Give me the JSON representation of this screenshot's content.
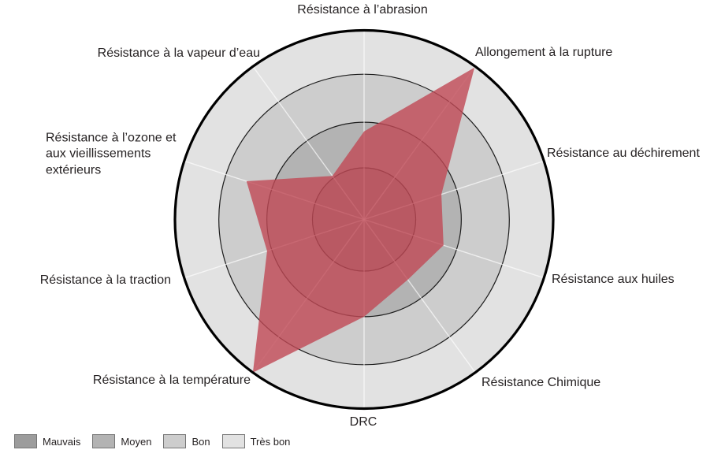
{
  "chart_data": {
    "type": "radar",
    "axes": [
      "Résistance à l’abrasion",
      "Allongement à la rupture",
      "Résistance au déchirement",
      "Résistance aux huiles",
      "Résistance Chimique",
      "DRC",
      "Résistance à la température",
      "Résistance à la traction",
      "Résistance à l’ozone et\naux vieillissements\nextérieurs",
      "Résistance à la vapeur d’eau"
    ],
    "axis_order": "clockwise-from-top",
    "scale": {
      "min": 0,
      "max": 4,
      "levels": [
        "Mauvais",
        "Moyen",
        "Bon",
        "Très bon"
      ],
      "ring_fractions": [
        0.273,
        0.514,
        0.768,
        1.0
      ],
      "ring_colors": [
        "#9c9c9c",
        "#b3b3b3",
        "#cdcdcd",
        "#e2e2e2"
      ]
    },
    "series": [
      {
        "values": [
          1.8,
          3.97,
          1.65,
          1.7,
          1.5,
          2.0,
          4.0,
          2.1,
          2.55,
          1.05
        ],
        "fill_color": "#c14955",
        "fill_opacity": 0.8
      }
    ],
    "grid_line_color": "#1c1c1c",
    "outer_circle_color": "#000000",
    "spoke_color": "#ffffff"
  },
  "legend": {
    "items": [
      {
        "label": "Mauvais",
        "color": "#9c9c9c"
      },
      {
        "label": "Moyen",
        "color": "#b3b3b3"
      },
      {
        "label": "Bon",
        "color": "#cdcdcd"
      },
      {
        "label": "Très bon",
        "color": "#e2e2e2"
      }
    ]
  }
}
